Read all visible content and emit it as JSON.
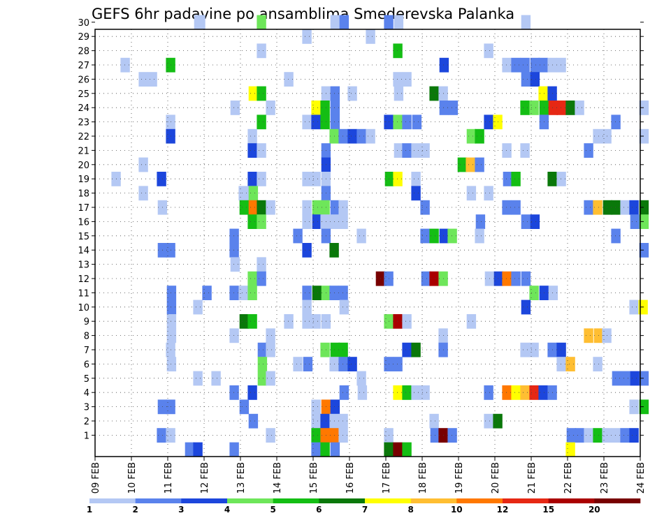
{
  "chart_data": {
    "type": "heatmap",
    "title": "GEFS 6hr padavine po ansamblima Smederevska Palanka",
    "xlabel": "",
    "ylabel": "",
    "x_tick_labels": [
      "09 FEB",
      "10 FEB",
      "11 FEB",
      "12 FEB",
      "13 FEB",
      "14 FEB",
      "15 FEB",
      "16 FEB",
      "17 FEB",
      "18 FEB",
      "19 FEB",
      "20 FEB",
      "21 FEB",
      "22 FEB",
      "23 FEB",
      "24 FEB"
    ],
    "x_range_6h_steps": [
      0,
      60
    ],
    "y_tick_labels": [
      "1",
      "2",
      "3",
      "4",
      "5",
      "6",
      "7",
      "8",
      "9",
      "10",
      "11",
      "12",
      "13",
      "14",
      "15",
      "16",
      "17",
      "18",
      "19",
      "20",
      "21",
      "22",
      "23",
      "24",
      "25",
      "26",
      "27",
      "28",
      "29",
      "30"
    ],
    "y_range_members": [
      0,
      30
    ],
    "grid": true,
    "legend": {
      "placement": "bottom",
      "labels": [
        "1",
        "2",
        "3",
        "4",
        "5",
        "6",
        "7",
        "8",
        "10",
        "12",
        "15",
        "20"
      ],
      "colors": [
        "#b4c8f4",
        "#5a82ec",
        "#1c46dc",
        "#6ee65a",
        "#14be14",
        "#0a780a",
        "#ffff00",
        "#ffbe32",
        "#ff7800",
        "#e62814",
        "#aa0000",
        "#780000"
      ]
    },
    "cells": [
      [
        10.9,
        30,
        0
      ],
      [
        11.1,
        30,
        0
      ],
      [
        17.8,
        30,
        3
      ],
      [
        25.9,
        30,
        0
      ],
      [
        26.9,
        30,
        1
      ],
      [
        31.8,
        30,
        1
      ],
      [
        32.9,
        30,
        0
      ],
      [
        46.9,
        30,
        0
      ],
      [
        22.8,
        29,
        0
      ],
      [
        29.8,
        29,
        0
      ],
      [
        17.8,
        28,
        0
      ],
      [
        32.8,
        28,
        4
      ],
      [
        42.8,
        28,
        0
      ],
      [
        2.8,
        27,
        0
      ],
      [
        7.8,
        27,
        4
      ],
      [
        37.9,
        27,
        2
      ],
      [
        44.8,
        27,
        0
      ],
      [
        45.8,
        27,
        1
      ],
      [
        46.8,
        27,
        1
      ],
      [
        47.9,
        27,
        1
      ],
      [
        48.8,
        27,
        1
      ],
      [
        49.8,
        27,
        0
      ],
      [
        50.8,
        27,
        0
      ],
      [
        4.8,
        26,
        0
      ],
      [
        5.8,
        26,
        0
      ],
      [
        20.8,
        26,
        0
      ],
      [
        32.8,
        26,
        0
      ],
      [
        33.8,
        26,
        0
      ],
      [
        46.9,
        26,
        1
      ],
      [
        47.9,
        26,
        2
      ],
      [
        16.9,
        25,
        6
      ],
      [
        17.8,
        25,
        4
      ],
      [
        24.9,
        25,
        0
      ],
      [
        25.9,
        25,
        1
      ],
      [
        27.8,
        25,
        0
      ],
      [
        32.9,
        25,
        0
      ],
      [
        36.8,
        25,
        5
      ],
      [
        37.8,
        25,
        0
      ],
      [
        48.8,
        25,
        6
      ],
      [
        49.8,
        25,
        2
      ],
      [
        14.9,
        24,
        0
      ],
      [
        18.8,
        24,
        0
      ],
      [
        23.8,
        24,
        6
      ],
      [
        24.8,
        24,
        4
      ],
      [
        25.9,
        24,
        1
      ],
      [
        37.9,
        24,
        1
      ],
      [
        38.9,
        24,
        1
      ],
      [
        46.8,
        24,
        4
      ],
      [
        47.8,
        24,
        3
      ],
      [
        48.9,
        24,
        4
      ],
      [
        49.9,
        24,
        9
      ],
      [
        50.8,
        24,
        9
      ],
      [
        51.8,
        24,
        5
      ],
      [
        52.8,
        24,
        0
      ],
      [
        59.9,
        24,
        0
      ],
      [
        7.8,
        23,
        0
      ],
      [
        17.8,
        23,
        4
      ],
      [
        22.8,
        23,
        0
      ],
      [
        23.8,
        23,
        2
      ],
      [
        24.8,
        23,
        4
      ],
      [
        25.9,
        23,
        1
      ],
      [
        31.8,
        23,
        2
      ],
      [
        32.8,
        23,
        3
      ],
      [
        33.8,
        23,
        1
      ],
      [
        34.9,
        23,
        1
      ],
      [
        42.8,
        23,
        2
      ],
      [
        43.8,
        23,
        6
      ],
      [
        48.9,
        23,
        1
      ],
      [
        56.8,
        23,
        1
      ],
      [
        7.8,
        22,
        2
      ],
      [
        16.8,
        22,
        0
      ],
      [
        25.8,
        22,
        3
      ],
      [
        26.8,
        22,
        1
      ],
      [
        27.8,
        22,
        2
      ],
      [
        28.8,
        22,
        1
      ],
      [
        29.8,
        22,
        0
      ],
      [
        40.9,
        22,
        3
      ],
      [
        41.8,
        22,
        4
      ],
      [
        54.8,
        22,
        0
      ],
      [
        55.8,
        22,
        0
      ],
      [
        59.9,
        22,
        0
      ],
      [
        16.8,
        21,
        2
      ],
      [
        17.8,
        21,
        0
      ],
      [
        24.9,
        21,
        1
      ],
      [
        32.9,
        21,
        0
      ],
      [
        33.8,
        21,
        1
      ],
      [
        34.8,
        21,
        0
      ],
      [
        35.8,
        21,
        0
      ],
      [
        44.8,
        21,
        0
      ],
      [
        46.8,
        21,
        0
      ],
      [
        53.8,
        21,
        1
      ],
      [
        4.8,
        20,
        0
      ],
      [
        24.9,
        20,
        2
      ],
      [
        39.9,
        20,
        4
      ],
      [
        40.8,
        20,
        7
      ],
      [
        41.8,
        20,
        1
      ],
      [
        1.8,
        19,
        0
      ],
      [
        6.8,
        19,
        2
      ],
      [
        16.8,
        19,
        2
      ],
      [
        17.8,
        19,
        0
      ],
      [
        22.8,
        19,
        0
      ],
      [
        23.8,
        19,
        0
      ],
      [
        24.9,
        19,
        0
      ],
      [
        31.9,
        19,
        4
      ],
      [
        32.8,
        19,
        6
      ],
      [
        34.8,
        19,
        0
      ],
      [
        44.9,
        19,
        1
      ],
      [
        45.8,
        19,
        4
      ],
      [
        49.8,
        19,
        5
      ],
      [
        50.8,
        19,
        0
      ],
      [
        4.8,
        18,
        0
      ],
      [
        15.8,
        18,
        0
      ],
      [
        16.8,
        18,
        0
      ],
      [
        16.9,
        18,
        3
      ],
      [
        24.9,
        18,
        1
      ],
      [
        34.8,
        18,
        2
      ],
      [
        40.9,
        18,
        0
      ],
      [
        42.8,
        18,
        0
      ],
      [
        6.9,
        17,
        0
      ],
      [
        15.9,
        17,
        4
      ],
      [
        16.9,
        17,
        8
      ],
      [
        17.8,
        17,
        5
      ],
      [
        18.8,
        17,
        0
      ],
      [
        22.8,
        17,
        0
      ],
      [
        23.9,
        17,
        3
      ],
      [
        24.8,
        17,
        3
      ],
      [
        25.9,
        17,
        1
      ],
      [
        26.8,
        17,
        0
      ],
      [
        35.8,
        17,
        1
      ],
      [
        44.8,
        17,
        1
      ],
      [
        45.8,
        17,
        1
      ],
      [
        53.8,
        17,
        1
      ],
      [
        54.8,
        17,
        7
      ],
      [
        55.9,
        17,
        5
      ],
      [
        56.8,
        17,
        5
      ],
      [
        57.8,
        17,
        0
      ],
      [
        58.8,
        17,
        2
      ],
      [
        59.9,
        17,
        5
      ],
      [
        16.8,
        16,
        4
      ],
      [
        17.8,
        16,
        3
      ],
      [
        22.8,
        16,
        0
      ],
      [
        23.9,
        16,
        2
      ],
      [
        24.8,
        16,
        0
      ],
      [
        25.8,
        16,
        0
      ],
      [
        26.8,
        16,
        0
      ],
      [
        41.9,
        16,
        1
      ],
      [
        46.9,
        16,
        1
      ],
      [
        47.9,
        16,
        2
      ],
      [
        58.9,
        16,
        1
      ],
      [
        59.9,
        16,
        3
      ],
      [
        14.8,
        15,
        1
      ],
      [
        21.8,
        15,
        1
      ],
      [
        24.9,
        15,
        1
      ],
      [
        28.8,
        15,
        0
      ],
      [
        35.8,
        15,
        1
      ],
      [
        36.8,
        15,
        4
      ],
      [
        37.9,
        15,
        2
      ],
      [
        38.8,
        15,
        3
      ],
      [
        41.8,
        15,
        0
      ],
      [
        56.8,
        15,
        1
      ],
      [
        14.8,
        14,
        1
      ],
      [
        22.8,
        14,
        2
      ],
      [
        25.8,
        14,
        5
      ],
      [
        6.9,
        14,
        1
      ],
      [
        7.8,
        14,
        1
      ],
      [
        59.9,
        14,
        1
      ],
      [
        14.9,
        13,
        0
      ],
      [
        17.8,
        13,
        0
      ],
      [
        16.8,
        12,
        3
      ],
      [
        17.8,
        12,
        1
      ],
      [
        30.9,
        12,
        11
      ],
      [
        31.8,
        12,
        1
      ],
      [
        35.9,
        12,
        1
      ],
      [
        36.8,
        12,
        10
      ],
      [
        37.8,
        12,
        3
      ],
      [
        42.9,
        12,
        0
      ],
      [
        43.9,
        12,
        2
      ],
      [
        44.8,
        12,
        8
      ],
      [
        45.8,
        12,
        1
      ],
      [
        46.9,
        12,
        1
      ],
      [
        7.9,
        11,
        1
      ],
      [
        11.8,
        11,
        1
      ],
      [
        14.8,
        11,
        1
      ],
      [
        15.8,
        11,
        0
      ],
      [
        16.8,
        11,
        3
      ],
      [
        22.8,
        11,
        1
      ],
      [
        23.9,
        11,
        5
      ],
      [
        24.9,
        11,
        3
      ],
      [
        25.8,
        11,
        1
      ],
      [
        26.8,
        11,
        1
      ],
      [
        47.8,
        11,
        3
      ],
      [
        48.9,
        11,
        2
      ],
      [
        49.9,
        11,
        0
      ],
      [
        7.9,
        10,
        1
      ],
      [
        10.8,
        10,
        0
      ],
      [
        22.8,
        10,
        0
      ],
      [
        26.9,
        10,
        0
      ],
      [
        46.9,
        10,
        2
      ],
      [
        58.8,
        10,
        0
      ],
      [
        59.8,
        10,
        6
      ],
      [
        7.9,
        9,
        0
      ],
      [
        15.9,
        9,
        5
      ],
      [
        16.8,
        9,
        4
      ],
      [
        20.8,
        9,
        0
      ],
      [
        22.8,
        9,
        0
      ],
      [
        23.8,
        9,
        0
      ],
      [
        24.9,
        9,
        0
      ],
      [
        31.8,
        9,
        3
      ],
      [
        32.8,
        9,
        10
      ],
      [
        33.8,
        9,
        0
      ],
      [
        40.9,
        9,
        0
      ],
      [
        7.9,
        8,
        0
      ],
      [
        14.8,
        8,
        0
      ],
      [
        18.8,
        8,
        0
      ],
      [
        37.8,
        8,
        0
      ],
      [
        53.8,
        8,
        7
      ],
      [
        54.9,
        8,
        7
      ],
      [
        55.8,
        8,
        0
      ],
      [
        7.8,
        7,
        0
      ],
      [
        17.9,
        7,
        1
      ],
      [
        18.8,
        7,
        0
      ],
      [
        24.8,
        7,
        3
      ],
      [
        25.9,
        7,
        4
      ],
      [
        26.8,
        7,
        4
      ],
      [
        33.8,
        7,
        2
      ],
      [
        34.8,
        7,
        5
      ],
      [
        37.8,
        7,
        1
      ],
      [
        46.8,
        7,
        0
      ],
      [
        47.8,
        7,
        0
      ],
      [
        49.8,
        7,
        1
      ],
      [
        50.8,
        7,
        2
      ],
      [
        7.9,
        6,
        0
      ],
      [
        17.9,
        6,
        3
      ],
      [
        21.8,
        6,
        0
      ],
      [
        22.9,
        6,
        1
      ],
      [
        25.8,
        6,
        0
      ],
      [
        26.8,
        6,
        1
      ],
      [
        27.8,
        6,
        2
      ],
      [
        31.8,
        6,
        1
      ],
      [
        32.8,
        6,
        1
      ],
      [
        50.8,
        6,
        0
      ],
      [
        51.8,
        6,
        7
      ],
      [
        54.8,
        6,
        0
      ],
      [
        10.8,
        5,
        0
      ],
      [
        12.8,
        5,
        0
      ],
      [
        17.9,
        5,
        3
      ],
      [
        18.8,
        5,
        0
      ],
      [
        28.8,
        5,
        0
      ],
      [
        56.9,
        5,
        1
      ],
      [
        57.9,
        5,
        1
      ],
      [
        58.9,
        5,
        2
      ],
      [
        59.9,
        5,
        1
      ],
      [
        14.8,
        4,
        1
      ],
      [
        16.8,
        4,
        2
      ],
      [
        26.9,
        4,
        1
      ],
      [
        28.9,
        4,
        0
      ],
      [
        32.8,
        4,
        6
      ],
      [
        33.8,
        4,
        4
      ],
      [
        34.8,
        4,
        0
      ],
      [
        35.8,
        4,
        0
      ],
      [
        42.8,
        4,
        1
      ],
      [
        44.8,
        4,
        8
      ],
      [
        45.8,
        4,
        6
      ],
      [
        46.8,
        4,
        7
      ],
      [
        47.8,
        4,
        9
      ],
      [
        48.8,
        4,
        2
      ],
      [
        49.8,
        4,
        1
      ],
      [
        6.9,
        3,
        1
      ],
      [
        7.8,
        3,
        1
      ],
      [
        15.9,
        3,
        1
      ],
      [
        23.8,
        3,
        0
      ],
      [
        24.9,
        3,
        8
      ],
      [
        25.9,
        3,
        2
      ],
      [
        58.8,
        3,
        0
      ],
      [
        59.9,
        3,
        4
      ],
      [
        16.9,
        2,
        1
      ],
      [
        23.8,
        2,
        0
      ],
      [
        24.8,
        2,
        2
      ],
      [
        25.8,
        2,
        0
      ],
      [
        26.8,
        2,
        0
      ],
      [
        36.8,
        2,
        0
      ],
      [
        42.8,
        2,
        0
      ],
      [
        43.8,
        2,
        5
      ],
      [
        6.8,
        1,
        1
      ],
      [
        7.8,
        1,
        0
      ],
      [
        18.8,
        1,
        0
      ],
      [
        23.8,
        1,
        4
      ],
      [
        24.8,
        1,
        8
      ],
      [
        25.8,
        1,
        8
      ],
      [
        26.8,
        1,
        0
      ],
      [
        31.8,
        1,
        0
      ],
      [
        36.9,
        1,
        1
      ],
      [
        37.8,
        1,
        11
      ],
      [
        38.8,
        1,
        1
      ],
      [
        51.9,
        1,
        1
      ],
      [
        52.8,
        1,
        1
      ],
      [
        53.8,
        1,
        0
      ],
      [
        54.8,
        1,
        4
      ],
      [
        55.8,
        1,
        0
      ],
      [
        56.8,
        1,
        0
      ],
      [
        57.8,
        1,
        1
      ],
      [
        58.8,
        1,
        2
      ],
      [
        9.9,
        0,
        1
      ],
      [
        10.8,
        0,
        2
      ],
      [
        14.8,
        0,
        1
      ],
      [
        23.8,
        0,
        1
      ],
      [
        24.8,
        0,
        4
      ],
      [
        25.9,
        0,
        1
      ],
      [
        31.8,
        0,
        5
      ],
      [
        32.8,
        0,
        11
      ],
      [
        33.8,
        0,
        4
      ],
      [
        51.8,
        0,
        6
      ]
    ]
  }
}
